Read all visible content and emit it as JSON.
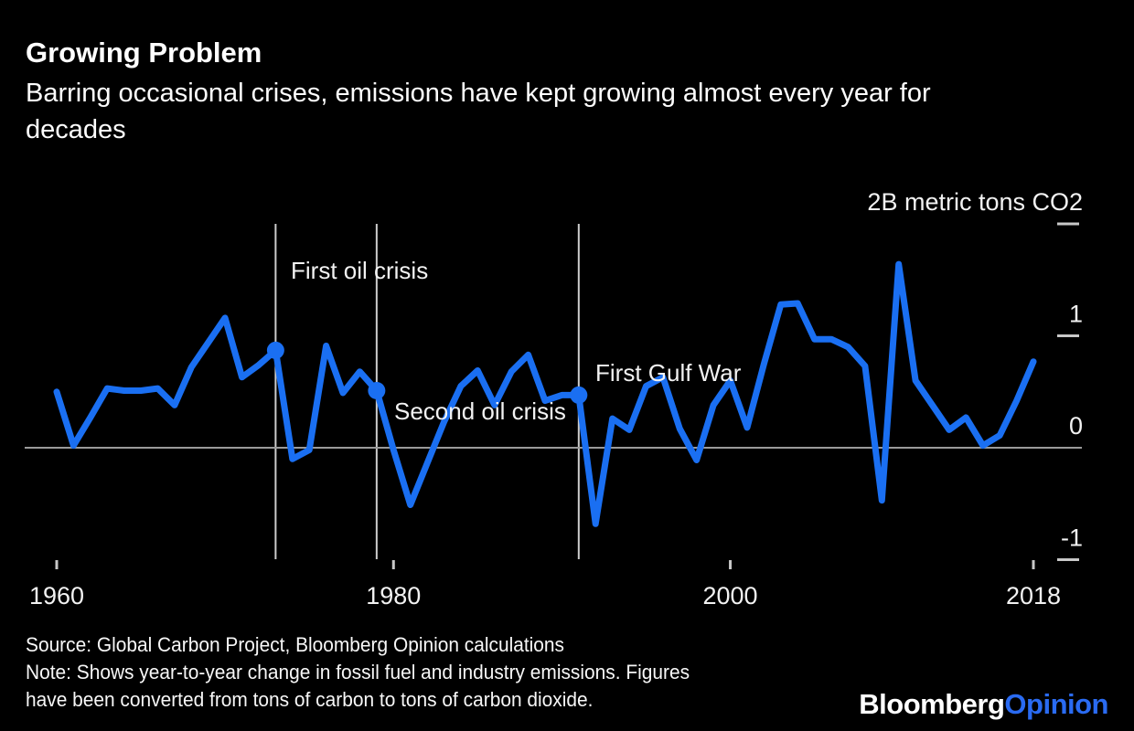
{
  "page": {
    "background": "#000000"
  },
  "header": {
    "title": "Growing Problem",
    "subtitle_lines": [
      "Barring occasional crises, emissions have kept growing almost every year for",
      "decades"
    ]
  },
  "chart_data": {
    "type": "line",
    "description": "Year-to-year change in fossil fuel and industry emissions, billions of metric tons of CO2",
    "unit_label": "2B metric tons CO2",
    "line_color": "#1a6ff2",
    "axis_color": "#9a9a9a",
    "event_line_color": "#cccccc",
    "tick_color": "#c8c8c8",
    "label_color": "#f2f2f2",
    "grid": false,
    "legend": "none",
    "ylim": [
      -1.35,
      2.1
    ],
    "x_ticks": [
      1960,
      1980,
      2000,
      2018
    ],
    "y_ticks": [
      {
        "value": 2,
        "label": "2B metric tons CO2",
        "dash": true
      },
      {
        "value": 1,
        "label": "1",
        "dash": true
      },
      {
        "value": 0,
        "label": "0",
        "dash": false
      },
      {
        "value": -1,
        "label": "-1",
        "dash": true
      }
    ],
    "annotations": [
      {
        "label": "First oil crisis",
        "year": 1973,
        "value": 0.87
      },
      {
        "label": "Second oil crisis",
        "year": 1979,
        "value": 0.51
      },
      {
        "label": "First Gulf War",
        "year": 1991,
        "value": 0.47
      }
    ],
    "years": [
      1960,
      1961,
      1962,
      1963,
      1964,
      1965,
      1966,
      1967,
      1968,
      1969,
      1970,
      1971,
      1972,
      1973,
      1974,
      1975,
      1976,
      1977,
      1978,
      1979,
      1980,
      1981,
      1982,
      1983,
      1984,
      1985,
      1986,
      1987,
      1988,
      1989,
      1990,
      1991,
      1992,
      1993,
      1994,
      1995,
      1996,
      1997,
      1998,
      1999,
      2000,
      2001,
      2002,
      2003,
      2004,
      2005,
      2006,
      2007,
      2008,
      2009,
      2010,
      2011,
      2012,
      2013,
      2014,
      2015,
      2016,
      2017,
      2018
    ],
    "values": [
      0.5,
      0.02,
      0.27,
      0.53,
      0.51,
      0.51,
      0.53,
      0.38,
      0.72,
      0.94,
      1.16,
      0.63,
      0.74,
      0.87,
      -0.1,
      -0.02,
      0.91,
      0.49,
      0.68,
      0.51,
      -0.02,
      -0.51,
      -0.14,
      0.23,
      0.55,
      0.69,
      0.38,
      0.68,
      0.83,
      0.42,
      0.47,
      0.47,
      -0.68,
      0.26,
      0.16,
      0.55,
      0.63,
      0.17,
      -0.11,
      0.38,
      0.6,
      0.18,
      0.75,
      1.28,
      1.29,
      0.97,
      0.97,
      0.9,
      0.73,
      -0.47,
      1.64,
      0.6,
      0.38,
      0.16,
      0.27,
      0.02,
      0.11,
      0.42,
      0.77
    ]
  },
  "footer": {
    "source": "Source: Global Carbon Project, Bloomberg Opinion calculations",
    "note_lines": [
      "Note: Shows year-to-year change in fossil fuel and industry emissions. Figures",
      "have been converted from tons of carbon to tons of carbon dioxide."
    ]
  },
  "logo": {
    "part1": "Bloomberg",
    "part2": "Opinion",
    "part1_color": "#ffffff",
    "part2_color": "#2a6bf2"
  }
}
